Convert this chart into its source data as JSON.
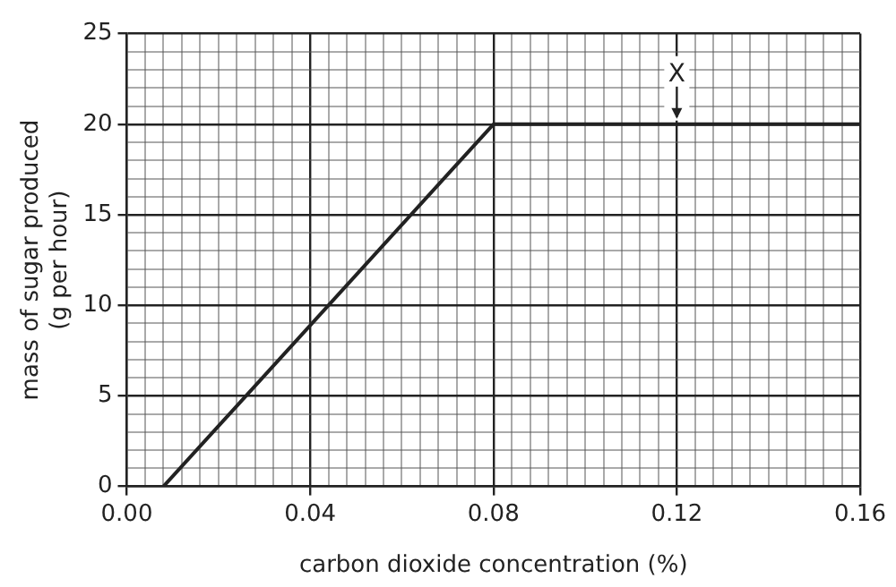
{
  "chart_data": {
    "type": "line",
    "xlabel": "carbon dioxide concentration (%)",
    "ylabel": "mass of sugar produced\n(g per hour)",
    "x": [
      0.008,
      0.08,
      0.16
    ],
    "series": [
      {
        "color": "#222222",
        "values": [
          0,
          20,
          20
        ]
      }
    ],
    "xlim": [
      0,
      0.16
    ],
    "xticks": [
      {
        "value": 0,
        "label": "0.00"
      },
      {
        "value": 0.004,
        "label": null
      },
      {
        "value": 0.008,
        "label": null
      },
      {
        "value": 0.012,
        "label": null
      },
      {
        "value": 0.016,
        "label": null
      },
      {
        "value": 0.02,
        "label": null
      },
      {
        "value": 0.024,
        "label": null
      },
      {
        "value": 0.028,
        "label": null
      },
      {
        "value": 0.032,
        "label": null
      },
      {
        "value": 0.036,
        "label": null
      },
      {
        "value": 0.04,
        "label": "0.04"
      },
      {
        "value": 0.044,
        "label": null
      },
      {
        "value": 0.048,
        "label": null
      },
      {
        "value": 0.052,
        "label": null
      },
      {
        "value": 0.056,
        "label": null
      },
      {
        "value": 0.06,
        "label": null
      },
      {
        "value": 0.064,
        "label": null
      },
      {
        "value": 0.068,
        "label": null
      },
      {
        "value": 0.072,
        "label": null
      },
      {
        "value": 0.076,
        "label": null
      },
      {
        "value": 0.08,
        "label": "0.08"
      },
      {
        "value": 0.084,
        "label": null
      },
      {
        "value": 0.088,
        "label": null
      },
      {
        "value": 0.092,
        "label": null
      },
      {
        "value": 0.096,
        "label": null
      },
      {
        "value": 0.1,
        "label": null
      },
      {
        "value": 0.104,
        "label": null
      },
      {
        "value": 0.108,
        "label": null
      },
      {
        "value": 0.112,
        "label": null
      },
      {
        "value": 0.116,
        "label": null
      },
      {
        "value": 0.12,
        "label": "0.12"
      },
      {
        "value": 0.124,
        "label": null
      },
      {
        "value": 0.128,
        "label": null
      },
      {
        "value": 0.132,
        "label": null
      },
      {
        "value": 0.136,
        "label": null
      },
      {
        "value": 0.14,
        "label": null
      },
      {
        "value": 0.144,
        "label": null
      },
      {
        "value": 0.148,
        "label": null
      },
      {
        "value": 0.152,
        "label": null
      },
      {
        "value": 0.156,
        "label": null
      },
      {
        "value": 0.16,
        "label": "0.16"
      }
    ],
    "ylim": [
      0,
      25
    ],
    "yticks": [
      0,
      {
        "value": 1,
        "label": null
      },
      {
        "value": 2,
        "label": null
      },
      {
        "value": 3,
        "label": null
      },
      {
        "value": 4,
        "label": null
      },
      5,
      {
        "value": 6,
        "label": null
      },
      {
        "value": 7,
        "label": null
      },
      {
        "value": 8,
        "label": null
      },
      {
        "value": 9,
        "label": null
      },
      10,
      {
        "value": 11,
        "label": null
      },
      {
        "value": 12,
        "label": null
      },
      {
        "value": 13,
        "label": null
      },
      {
        "value": 14,
        "label": null
      },
      15,
      {
        "value": 16,
        "label": null
      },
      {
        "value": 17,
        "label": null
      },
      {
        "value": 18,
        "label": null
      },
      {
        "value": 19,
        "label": null
      },
      20,
      {
        "value": 21,
        "label": null
      },
      {
        "value": 22,
        "label": null
      },
      {
        "value": 23,
        "label": null
      },
      {
        "value": 24,
        "label": null
      },
      25
    ],
    "grid": true,
    "marker": "none",
    "line_style": "solid",
    "annotations": [
      {
        "text": "X",
        "x": 0.12,
        "y": 20
      }
    ]
  }
}
